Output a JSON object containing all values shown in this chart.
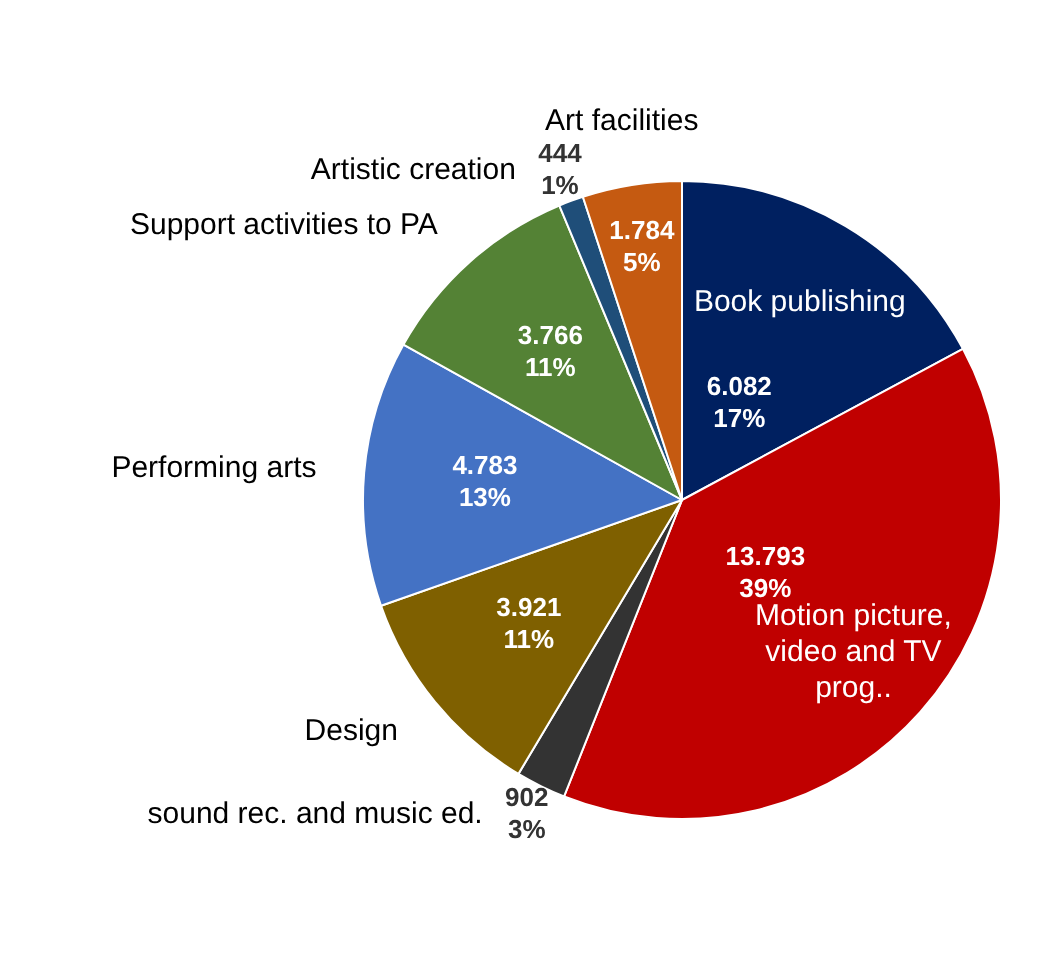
{
  "chart_data": {
    "type": "pie",
    "categories": [
      "Book publishing",
      "Motion picture, video and TV prog..",
      "sound rec. and music ed.",
      "Design",
      "Performing arts",
      "Support activities to PA",
      "Artistic creation",
      "Art facilities"
    ],
    "values": [
      6082,
      13793,
      902,
      3921,
      4783,
      3766,
      444,
      1784
    ],
    "value_labels": [
      "6.082 17%",
      "13.793 39%",
      "902 3%",
      "3.921 11%",
      "4.783 13%",
      "3.766 11%",
      "444 1%",
      "1.784 5%"
    ],
    "colors": [
      "#002060",
      "#c00000",
      "#333333",
      "#7f6000",
      "#4472c4",
      "#548235",
      "#1f4e79",
      "#c55a11"
    ],
    "legend": false
  }
}
